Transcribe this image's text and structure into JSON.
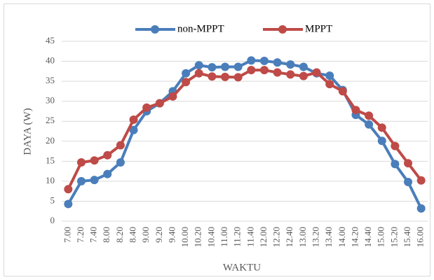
{
  "chart_data": {
    "type": "line",
    "xlabel": "WAKTU",
    "ylabel": "DAYA (W)",
    "categories": [
      "7.00",
      "7.20",
      "7.40",
      "8.00",
      "8.20",
      "8.40",
      "9.00",
      "9.20",
      "9.40",
      "10.00",
      "10.20",
      "10.40",
      "11.00",
      "11.20",
      "11.40",
      "12.00",
      "12.20",
      "12.40",
      "13.00",
      "13.20",
      "13.40",
      "14.00",
      "14.20",
      "14.40",
      "15.00",
      "15.20",
      "15.40",
      "16.00"
    ],
    "series": [
      {
        "name": "non-MPPT",
        "color": "#4a7ebb",
        "values": [
          4.3,
          10,
          10.3,
          11.8,
          14.7,
          22.8,
          27.5,
          29.5,
          32.5,
          37,
          39,
          38.5,
          38.6,
          38.6,
          40.2,
          40.1,
          39.7,
          39.2,
          38.6,
          37,
          36.4,
          32.8,
          26.6,
          24.2,
          20.1,
          14.3,
          9.8,
          3.2
        ]
      },
      {
        "name": "MPPT",
        "color": "#be4b48",
        "values": [
          8,
          14.7,
          15.2,
          16.5,
          19,
          25.4,
          28.4,
          29.5,
          31.2,
          34.8,
          37,
          36.2,
          36.1,
          36,
          37.8,
          37.8,
          37.2,
          36.7,
          36.3,
          37.2,
          34.3,
          32.5,
          27.8,
          26.4,
          23.4,
          18.8,
          14.5,
          10.2
        ]
      }
    ],
    "ylim": [
      0,
      45
    ],
    "yticks": [
      0,
      5,
      10,
      15,
      20,
      25,
      30,
      35,
      40,
      45
    ],
    "grid": true,
    "legend": "top"
  }
}
